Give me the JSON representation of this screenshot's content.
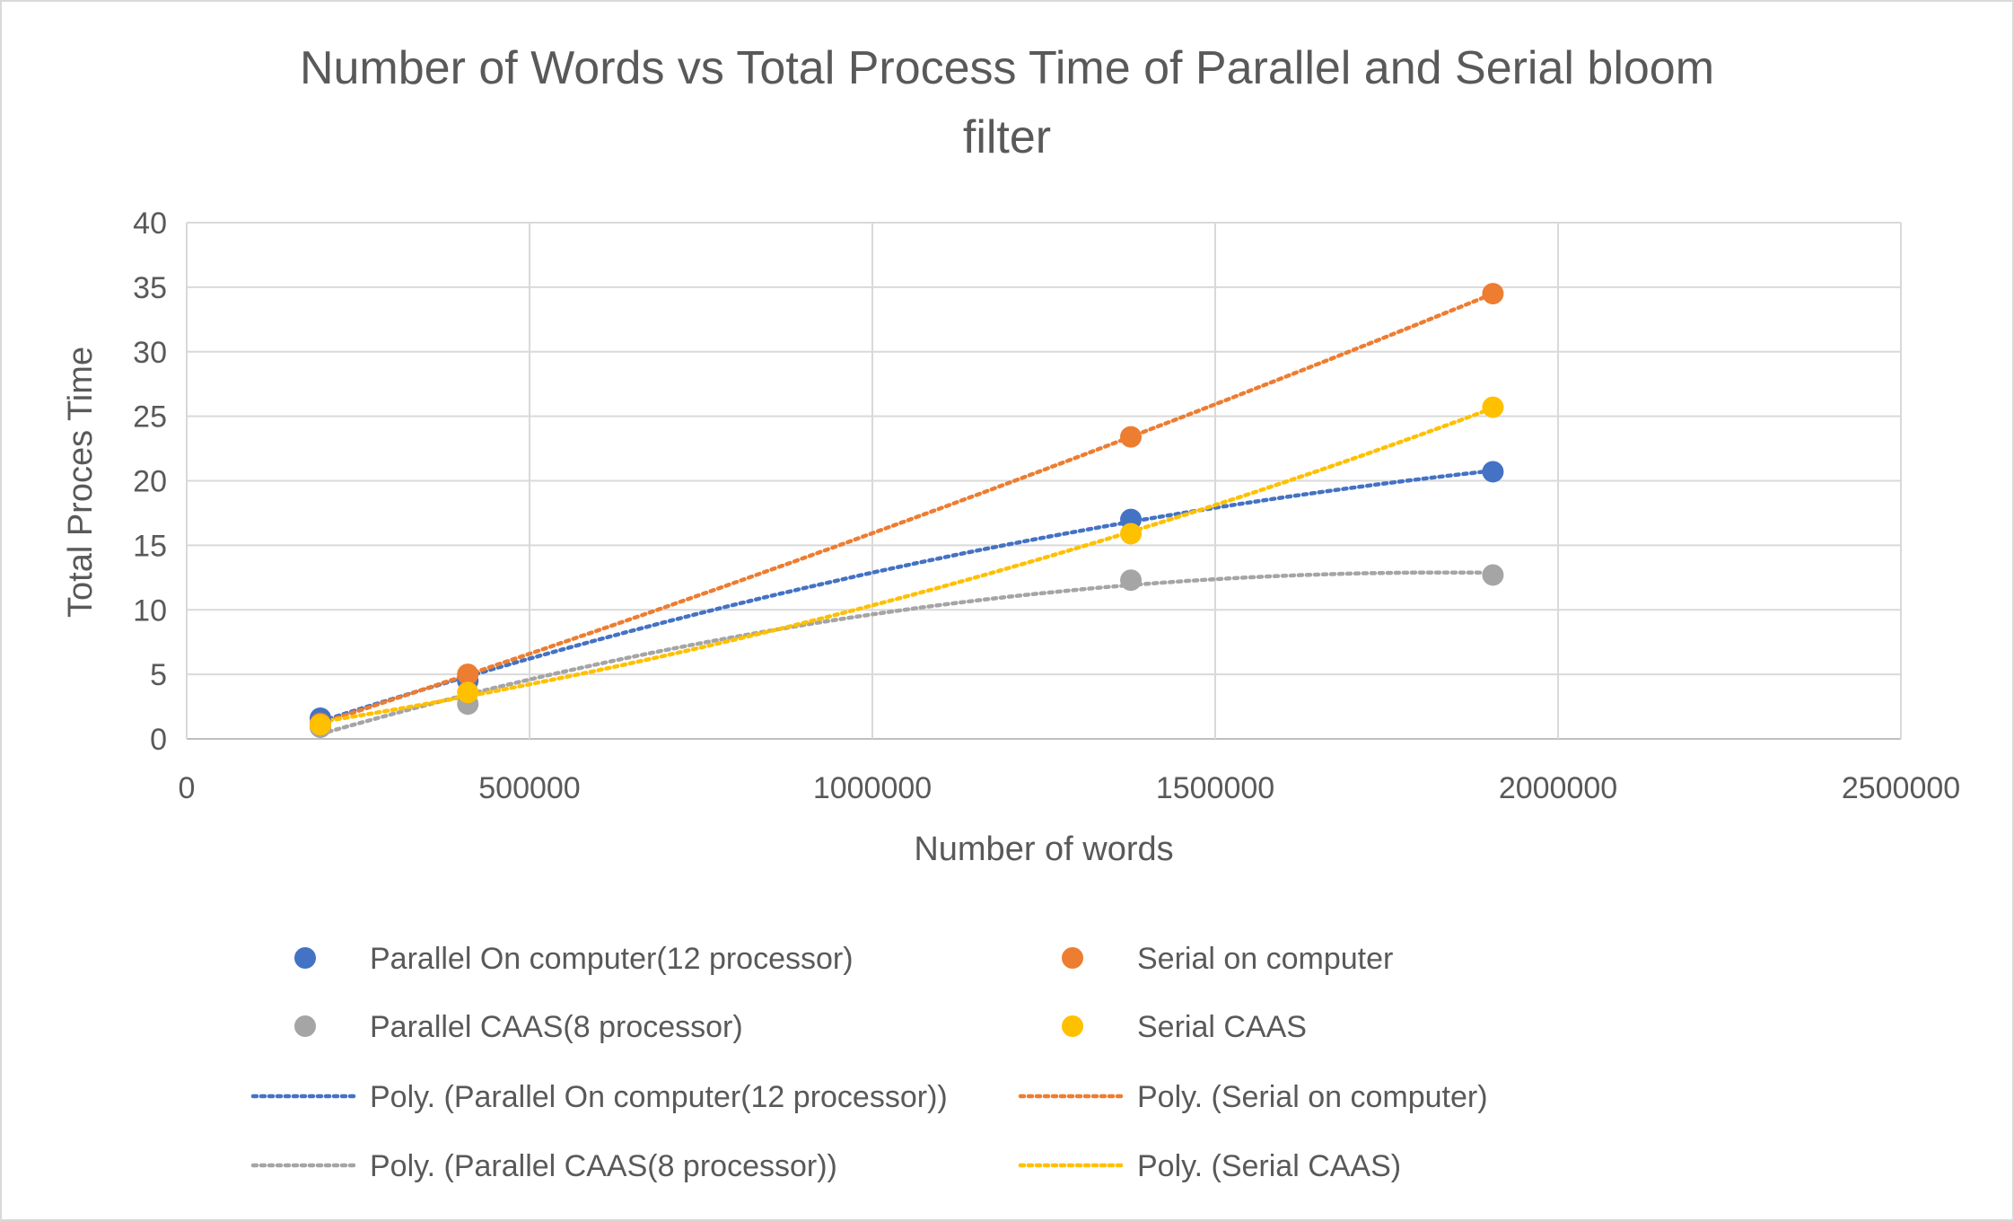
{
  "chart_data": {
    "type": "scatter",
    "title": "Number of Words vs Total Process Time of Parallel and Serial bloom filter",
    "title_lines": [
      "Number of Words vs Total Process Time of Parallel and Serial bloom",
      "filter"
    ],
    "xlabel": "Number of words",
    "ylabel": "Total Proces Time",
    "xlim": [
      0,
      2500000
    ],
    "ylim": [
      0,
      40
    ],
    "x_ticks": [
      0,
      500000,
      1000000,
      1500000,
      2000000,
      2500000
    ],
    "x_tick_labels": [
      "0",
      "500000",
      "1000000",
      "1500000",
      "2000000",
      "2500000"
    ],
    "y_ticks": [
      0,
      5,
      10,
      15,
      20,
      25,
      30,
      35,
      40
    ],
    "y_tick_labels": [
      "0",
      "5",
      "10",
      "15",
      "20",
      "25",
      "30",
      "35",
      "40"
    ],
    "grid": true,
    "legend_position": "bottom",
    "series": [
      {
        "name": "Parallel On computer(12 processor)",
        "color": "#4472C4",
        "x": [
          195000,
          410000,
          1377000,
          1905000
        ],
        "y": [
          1.6,
          4.5,
          17.0,
          20.7
        ]
      },
      {
        "name": "Serial on computer",
        "color": "#ED7D31",
        "x": [
          195000,
          410000,
          1377000,
          1905000
        ],
        "y": [
          1.2,
          5.0,
          23.4,
          34.5
        ]
      },
      {
        "name": "Parallel CAAS(8 processor)",
        "color": "#A5A5A5",
        "x": [
          195000,
          410000,
          1377000,
          1905000
        ],
        "y": [
          0.9,
          2.7,
          12.3,
          12.7
        ]
      },
      {
        "name": "Serial CAAS",
        "color": "#FFC000",
        "x": [
          195000,
          410000,
          1377000,
          1905000
        ],
        "y": [
          1.1,
          3.6,
          15.9,
          25.7
        ]
      }
    ],
    "trendlines": [
      {
        "name": "Poly. (Parallel On computer(12 processor))",
        "color": "#4472C4",
        "series_index": 0,
        "type": "polynomial"
      },
      {
        "name": "Poly. (Serial on computer)",
        "color": "#ED7D31",
        "series_index": 1,
        "type": "polynomial"
      },
      {
        "name": "Poly. (Parallel CAAS(8 processor))",
        "color": "#A5A5A5",
        "series_index": 2,
        "type": "polynomial"
      },
      {
        "name": "Poly. (Serial CAAS)",
        "color": "#FFC000",
        "series_index": 3,
        "type": "polynomial"
      }
    ]
  }
}
